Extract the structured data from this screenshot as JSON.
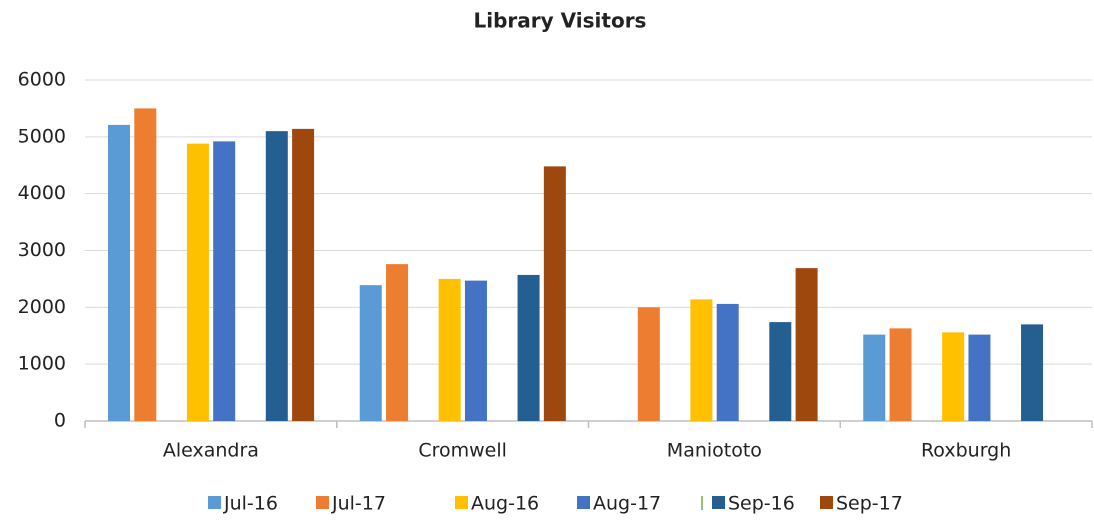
{
  "chart_data": {
    "type": "bar",
    "title": "Library Visitors",
    "categories": [
      "Alexandra",
      "Cromwell",
      "Maniototo",
      "Roxburgh"
    ],
    "series": [
      {
        "name": "Jul-16",
        "color": "#5b9bd5",
        "values": [
          5210,
          2390,
          null,
          1520
        ]
      },
      {
        "name": "Jul-17",
        "color": "#ed7d31",
        "values": [
          5500,
          2760,
          2000,
          1630
        ]
      },
      {
        "name": "Aug-16",
        "color": "#ffc000",
        "values": [
          4880,
          2500,
          2140,
          1560
        ]
      },
      {
        "name": "Aug-17",
        "color": "#4472c4",
        "values": [
          4920,
          2470,
          2060,
          1520
        ]
      },
      {
        "name": "Sep-16",
        "color": "#255e91",
        "values": [
          5100,
          2570,
          1740,
          1700
        ]
      },
      {
        "name": "Sep-17",
        "color": "#9e480e",
        "values": [
          5140,
          4480,
          2690,
          null
        ]
      }
    ],
    "ylim": [
      0,
      6000
    ],
    "yticks": [
      0,
      1000,
      2000,
      3000,
      4000,
      5000,
      6000
    ],
    "grid": true
  }
}
